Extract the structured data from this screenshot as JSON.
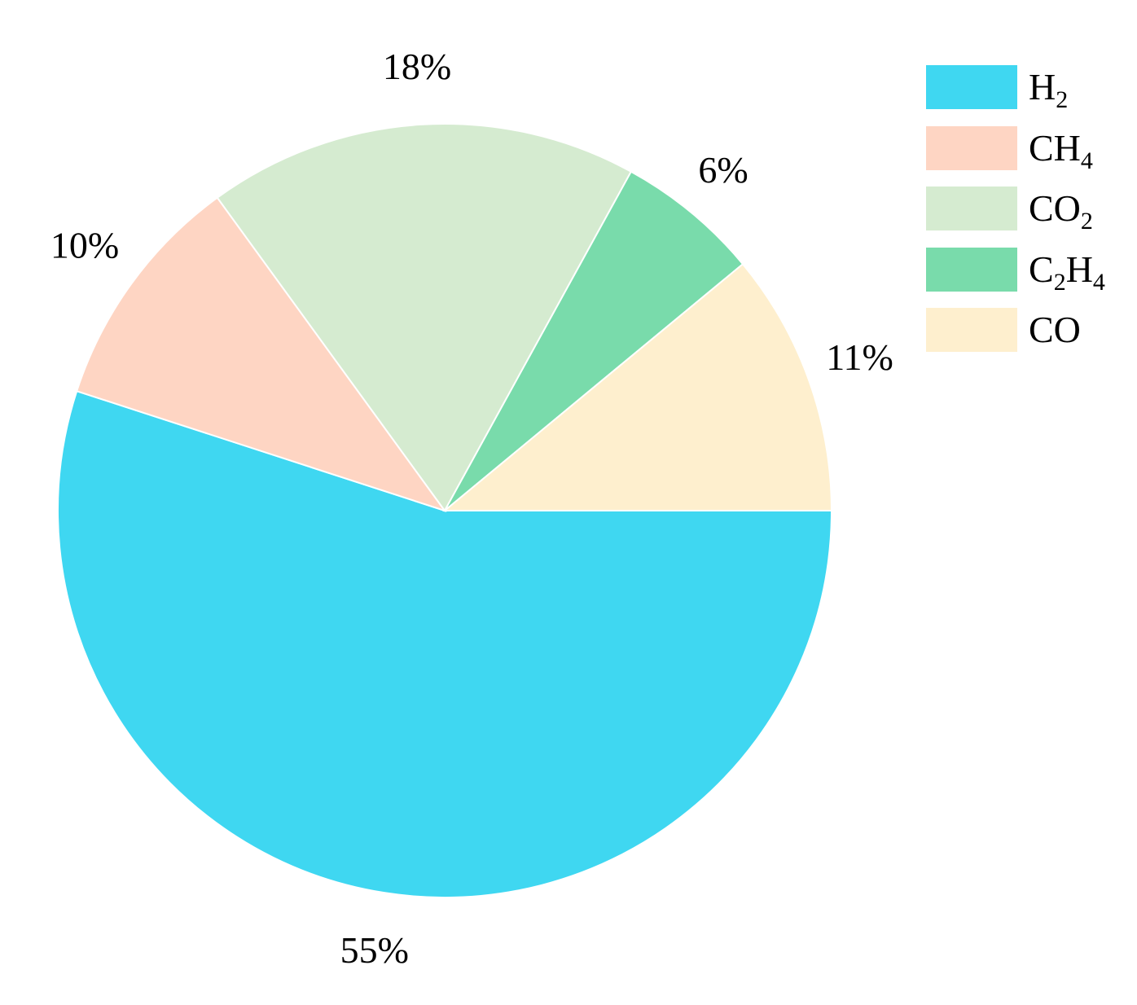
{
  "chart_data": {
    "type": "pie",
    "title": "",
    "slices": [
      {
        "label": "H2",
        "display_label": [
          "H",
          "2"
        ],
        "value": 55,
        "value_label": "55%",
        "color": "#3fd7f1"
      },
      {
        "label": "CH4",
        "display_label": [
          "CH",
          "4"
        ],
        "value": 10,
        "value_label": "10%",
        "color": "#fed5c3"
      },
      {
        "label": "CO2",
        "display_label": [
          "CO",
          "2"
        ],
        "value": 18,
        "value_label": "18%",
        "color": "#d5ebd0"
      },
      {
        "label": "C2H4",
        "display_label": [
          "C",
          "2",
          "H",
          "4"
        ],
        "value": 6,
        "value_label": "6%",
        "color": "#79dbab"
      },
      {
        "label": "CO",
        "display_label": [
          "CO"
        ],
        "value": 11,
        "value_label": "11%",
        "color": "#feefce"
      }
    ],
    "start_direction": "east",
    "direction": "clockwise",
    "legend_position": "right"
  }
}
